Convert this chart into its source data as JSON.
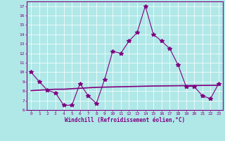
{
  "x": [
    0,
    1,
    2,
    3,
    4,
    5,
    6,
    7,
    8,
    9,
    10,
    11,
    12,
    13,
    14,
    15,
    16,
    17,
    18,
    19,
    20,
    21,
    22,
    23
  ],
  "y_main": [
    10.0,
    9.0,
    8.1,
    7.8,
    6.5,
    6.5,
    8.8,
    7.5,
    6.7,
    9.2,
    12.2,
    12.0,
    13.3,
    14.2,
    17.0,
    14.0,
    13.3,
    12.5,
    10.8,
    8.5,
    8.5,
    7.5,
    7.2,
    8.8
  ],
  "y_trend": [
    8.05,
    8.1,
    8.15,
    8.2,
    8.2,
    8.25,
    8.3,
    8.35,
    8.4,
    8.42,
    8.44,
    8.46,
    8.48,
    8.5,
    8.52,
    8.54,
    8.55,
    8.56,
    8.57,
    8.58,
    8.59,
    8.6,
    8.61,
    8.62
  ],
  "xlabel": "Windchill (Refroidissement éolien,°C)",
  "ylim": [
    6,
    17.5
  ],
  "xlim": [
    -0.5,
    23.5
  ],
  "yticks": [
    6,
    7,
    8,
    9,
    10,
    11,
    12,
    13,
    14,
    15,
    16,
    17
  ],
  "xticks": [
    0,
    1,
    2,
    3,
    4,
    5,
    6,
    7,
    8,
    9,
    10,
    11,
    12,
    13,
    14,
    15,
    16,
    17,
    18,
    19,
    20,
    21,
    22,
    23
  ],
  "line_color": "#800080",
  "bg_color": "#b0e8e8",
  "grid_color": "#ffffff"
}
